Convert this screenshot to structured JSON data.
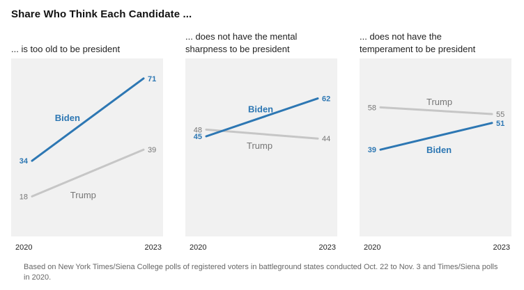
{
  "title": "Share Who Think Each Candidate ...",
  "note": "Based on New York Times/Siena College polls of registered voters in battleground states conducted Oct. 22 to Nov. 3 and Times/Siena polls in 2020.",
  "colors": {
    "biden": "#2d77b3",
    "trump": "#c6c6c6",
    "panel_bg": "#f1f1f1",
    "trump_text": "#767676"
  },
  "chart_data": [
    {
      "type": "line",
      "subtitle_line1": "... is too old to be president",
      "subtitle_line2": "",
      "x": [
        "2020",
        "2023"
      ],
      "ylim": [
        0,
        80
      ],
      "series": [
        {
          "name": "Biden",
          "values": [
            34,
            71
          ],
          "labels": [
            "34",
            "71"
          ]
        },
        {
          "name": "Trump",
          "values": [
            18,
            39
          ],
          "labels": [
            "18",
            "39"
          ]
        }
      ]
    },
    {
      "type": "line",
      "subtitle_line1": "... does not have the mental",
      "subtitle_line2": "sharpness to be president",
      "x": [
        "2020",
        "2023"
      ],
      "ylim": [
        0,
        80
      ],
      "series": [
        {
          "name": "Biden",
          "values": [
            45,
            62
          ],
          "labels": [
            "45",
            "62"
          ]
        },
        {
          "name": "Trump",
          "values": [
            48,
            44
          ],
          "labels": [
            "48",
            "44"
          ]
        }
      ]
    },
    {
      "type": "line",
      "subtitle_line1": "... does not have the",
      "subtitle_line2": "temperament to be president",
      "x": [
        "2020",
        "2023"
      ],
      "ylim": [
        0,
        80
      ],
      "series": [
        {
          "name": "Biden",
          "values": [
            39,
            51
          ],
          "labels": [
            "39",
            "51"
          ]
        },
        {
          "name": "Trump",
          "values": [
            58,
            55
          ],
          "labels": [
            "58",
            "55"
          ]
        }
      ]
    }
  ]
}
